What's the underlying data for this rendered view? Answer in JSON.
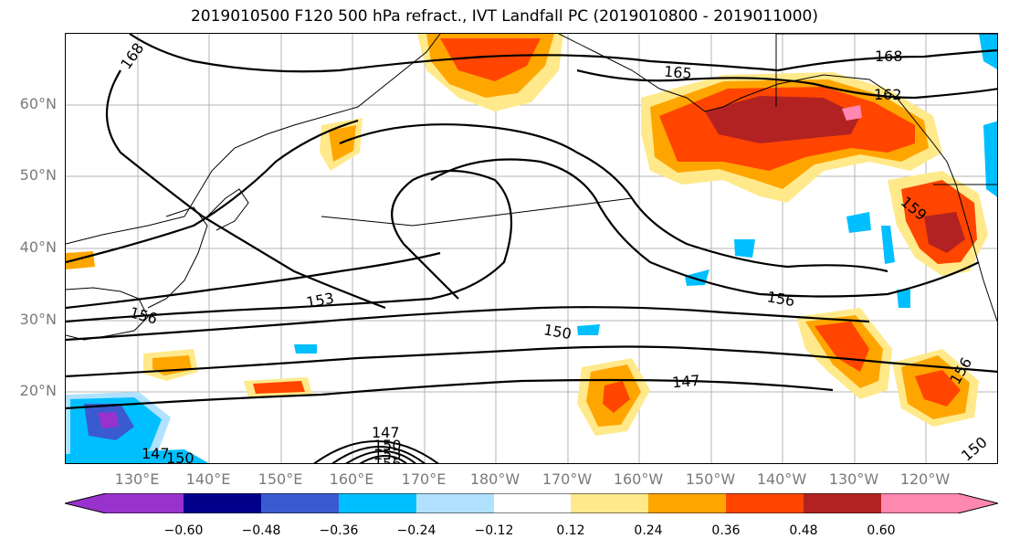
{
  "title": "2019010500 F120 500 hPa refract., IVT Landfall PC (2019010800 - 2019011000)",
  "lat_labels": [
    "60°N",
    "50°N",
    "40°N",
    "30°N",
    "20°N"
  ],
  "lon_labels": [
    "130°E",
    "140°E",
    "150°E",
    "160°E",
    "170°E",
    "180°W",
    "170°W",
    "160°W",
    "150°W",
    "140°W",
    "130°W",
    "120°W"
  ],
  "contour_labels": [
    "168",
    "165",
    "168",
    "162",
    "159",
    "153",
    "156",
    "156",
    "150",
    "147",
    "156",
    "150",
    "147",
    "147",
    "150",
    "150",
    "153",
    "156"
  ],
  "colorbar": {
    "ticks": [
      "−0.60",
      "−0.48",
      "−0.36",
      "−0.24",
      "−0.12",
      "0.12",
      "0.24",
      "0.36",
      "0.48",
      "0.60"
    ],
    "colors": [
      "#9932cc",
      "#00008b",
      "#3a5bd0",
      "#00bfff",
      "#b0e2ff",
      "#ffffff",
      "#ffe98a",
      "#ffa500",
      "#ff4500",
      "#b22222",
      "#ff88b0"
    ]
  }
}
